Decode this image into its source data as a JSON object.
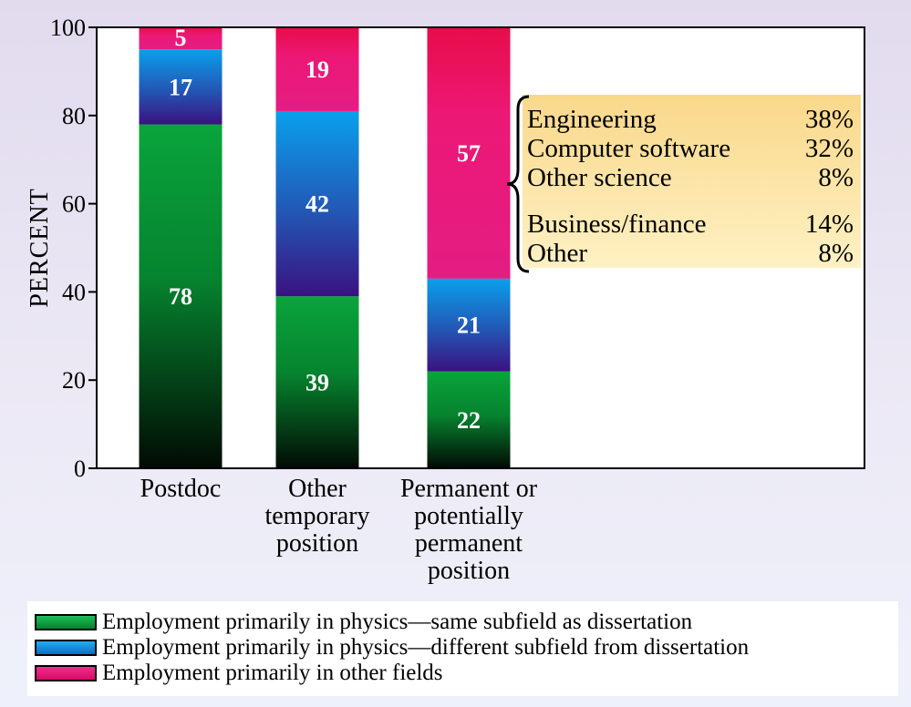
{
  "chart_data": {
    "type": "bar",
    "stacked": true,
    "ylabel": "PERCENT",
    "ylim": [
      0,
      100
    ],
    "yticks": [
      0,
      20,
      40,
      60,
      80,
      100
    ],
    "categories": [
      [
        "Postdoc"
      ],
      [
        "Other",
        "temporary",
        "position"
      ],
      [
        "Permanent or",
        "potentially",
        "permanent",
        "position"
      ]
    ],
    "series": [
      {
        "name": "Employment primarily in physics—same subfield as dissertation",
        "color": "#0aa43c",
        "values": [
          78,
          39,
          22
        ]
      },
      {
        "name": "Employment primarily in physics—different subfield from dissertation",
        "color": "#0a8ee0",
        "values": [
          17,
          42,
          21
        ]
      },
      {
        "name": "Employment primarily in other fields",
        "color": "#e8177a",
        "values": [
          5,
          19,
          57
        ]
      }
    ],
    "annotation": {
      "target_category": 2,
      "groups": [
        [
          {
            "label": "Engineering",
            "value": "38%"
          },
          {
            "label": "Computer software",
            "value": "32%"
          },
          {
            "label": "Other science",
            "value": "8%"
          }
        ],
        [
          {
            "label": "Business/finance",
            "value": "14%"
          },
          {
            "label": "Other",
            "value": "8%"
          }
        ]
      ]
    },
    "grid": false,
    "legend_position": "bottom"
  }
}
